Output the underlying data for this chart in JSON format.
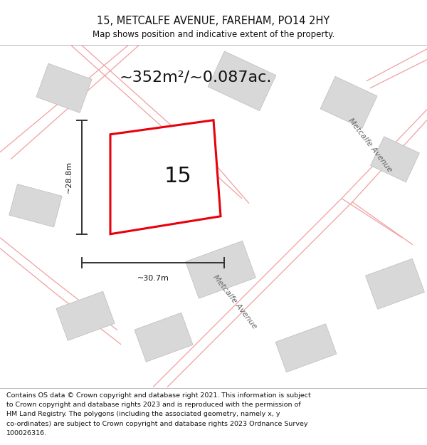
{
  "title": "15, METCALFE AVENUE, FAREHAM, PO14 2HY",
  "subtitle": "Map shows position and indicative extent of the property.",
  "area_text": "~352m²/~0.087ac.",
  "label_15": "15",
  "dim_height": "~28.8m",
  "dim_width": "~30.7m",
  "road_label": "Metcalfe Avenue",
  "background_color": "#ffffff",
  "map_bg": "#f7f6f6",
  "plot_fill": "#ffffff",
  "plot_outline_color": "#e8000a",
  "road_line_color": "#f0a0a0",
  "building_color": "#d8d8d8",
  "building_outline": "#bbbbbb",
  "dim_line_color": "#333333",
  "footer_text": "Contains OS data © Crown copyright and database right 2021. This information is subject to Crown copyright and database rights 2023 and is reproduced with the permission of HM Land Registry. The polygons (including the associated geometry, namely x, y co-ordinates) are subject to Crown copyright and database rights 2023 Ordnance Survey 100026316.",
  "title_fontsize": 10.5,
  "subtitle_fontsize": 8.5,
  "footer_fontsize": 6.8,
  "area_fontsize": 16,
  "label_fontsize": 22,
  "dim_fontsize": 8,
  "road_label_fontsize": 8
}
